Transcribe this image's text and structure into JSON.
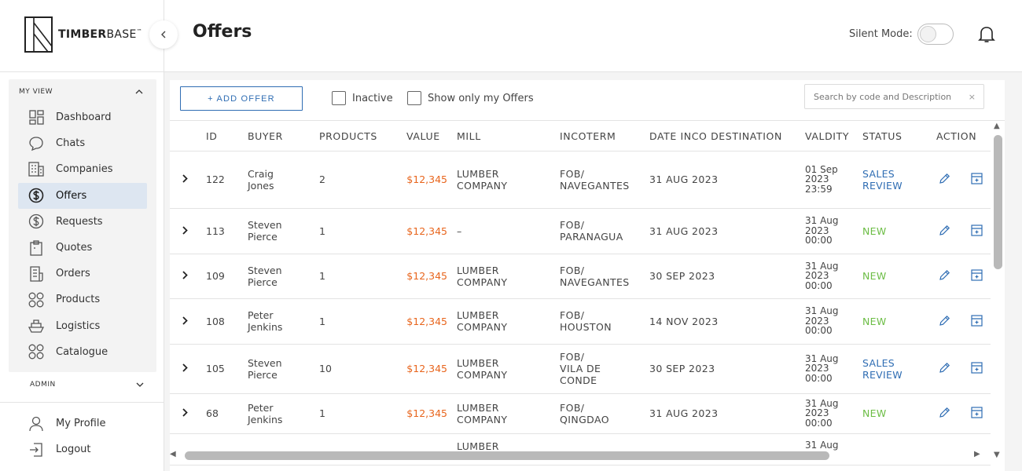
{
  "brand": {
    "name_bold": "TIMBER",
    "name_light": "BASE",
    "tm": "™"
  },
  "sidebar": {
    "section_my_view": "MY VIEW",
    "items": [
      {
        "label": "Dashboard",
        "icon": "dashboard-icon"
      },
      {
        "label": "Chats",
        "icon": "chat-icon"
      },
      {
        "label": "Companies",
        "icon": "building-icon"
      },
      {
        "label": "Offers",
        "icon": "dollar-circle-icon",
        "active": true
      },
      {
        "label": "Requests",
        "icon": "dollar-outline-icon"
      },
      {
        "label": "Quotes",
        "icon": "clipboard-icon"
      },
      {
        "label": "Orders",
        "icon": "receipt-icon"
      },
      {
        "label": "Products",
        "icon": "grid-circles-icon"
      },
      {
        "label": "Logistics",
        "icon": "ship-icon"
      },
      {
        "label": "Catalogue",
        "icon": "catalogue-icon"
      }
    ],
    "section_admin": "ADMIN",
    "bottom_items": [
      {
        "label": "My Profile",
        "icon": "user-icon"
      },
      {
        "label": "Logout",
        "icon": "logout-icon"
      }
    ]
  },
  "header": {
    "title": "Offers",
    "silent_mode_label": "Silent Mode:",
    "silent_mode_on": false
  },
  "toolbar": {
    "add_offer_label": "+ ADD OFFER",
    "inactive_label": "Inactive",
    "show_mine_label": "Show only my Offers",
    "search_placeholder": "Search by code and Description",
    "search_clear": "×"
  },
  "table": {
    "columns": [
      "ID",
      "BUYER",
      "PRODUCTS",
      "VALUE",
      "MILL",
      "INCOTERM",
      "DATE INCO DESTINATION",
      "VALDITY",
      "STATUS",
      "ACTION"
    ],
    "rows": [
      {
        "id": "122",
        "buyer": [
          "Craig",
          "Jones"
        ],
        "products": "2",
        "value": "$12,345",
        "mill": [
          "LUMBER",
          "COMPANY"
        ],
        "incoterm": [
          "FOB/",
          "NAVEGANTES"
        ],
        "date": "31 AUG 2023",
        "validity": [
          "01 Sep",
          "2023",
          "23:59"
        ],
        "status": [
          "SALES",
          "REVIEW"
        ],
        "status_type": "sales"
      },
      {
        "id": "113",
        "buyer": [
          "Steven",
          "Pierce"
        ],
        "products": "1",
        "value": "$12,345",
        "mill": [
          "–"
        ],
        "incoterm": [
          "FOB/",
          "PARANAGUA"
        ],
        "date": "31 AUG 2023",
        "validity": [
          "31 Aug",
          "2023",
          "00:00"
        ],
        "status": [
          "NEW"
        ],
        "status_type": "new"
      },
      {
        "id": "109",
        "buyer": [
          "Steven",
          "Pierce"
        ],
        "products": "1",
        "value": "$12,345",
        "mill": [
          "LUMBER",
          "COMPANY"
        ],
        "incoterm": [
          "FOB/",
          "NAVEGANTES"
        ],
        "date": "30 SEP 2023",
        "validity": [
          "31 Aug",
          "2023",
          "00:00"
        ],
        "status": [
          "NEW"
        ],
        "status_type": "new"
      },
      {
        "id": "108",
        "buyer": [
          "Peter",
          "Jenkins"
        ],
        "products": "1",
        "value": "$12,345",
        "mill": [
          "LUMBER",
          "COMPANY"
        ],
        "incoterm": [
          "FOB/",
          "HOUSTON"
        ],
        "date": "14 NOV 2023",
        "validity": [
          "31 Aug",
          "2023",
          "00:00"
        ],
        "status": [
          "NEW"
        ],
        "status_type": "new"
      },
      {
        "id": "105",
        "buyer": [
          "Steven",
          "Pierce"
        ],
        "products": "10",
        "value": "$12,345",
        "mill": [
          "LUMBER",
          "COMPANY"
        ],
        "incoterm": [
          "FOB/",
          "VILA DE",
          "CONDE"
        ],
        "date": "30 SEP 2023",
        "validity": [
          "31 Aug",
          "2023",
          "00:00"
        ],
        "status": [
          "SALES",
          "REVIEW"
        ],
        "status_type": "sales"
      },
      {
        "id": "68",
        "buyer": [
          "Peter",
          "Jenkins"
        ],
        "products": "1",
        "value": "$12,345",
        "mill": [
          "LUMBER",
          "COMPANY"
        ],
        "incoterm": [
          "FOB/",
          "QINGDAO"
        ],
        "date": "31 AUG 2023",
        "validity": [
          "31 Aug",
          "2023",
          "00:00"
        ],
        "status": [
          "NEW"
        ],
        "status_type": "new"
      },
      {
        "id": "",
        "buyer": [
          ""
        ],
        "products": "",
        "value": "",
        "mill": [
          "LUMBER"
        ],
        "incoterm": [
          ""
        ],
        "date": "",
        "validity": [
          "31 Aug"
        ],
        "status": [
          ""
        ],
        "status_type": "new",
        "partial": true
      }
    ]
  },
  "colors": {
    "accent": "#2f6db3",
    "value": "#e8651d",
    "status_new": "#6cbd45",
    "active_nav": "#dde6f1"
  }
}
